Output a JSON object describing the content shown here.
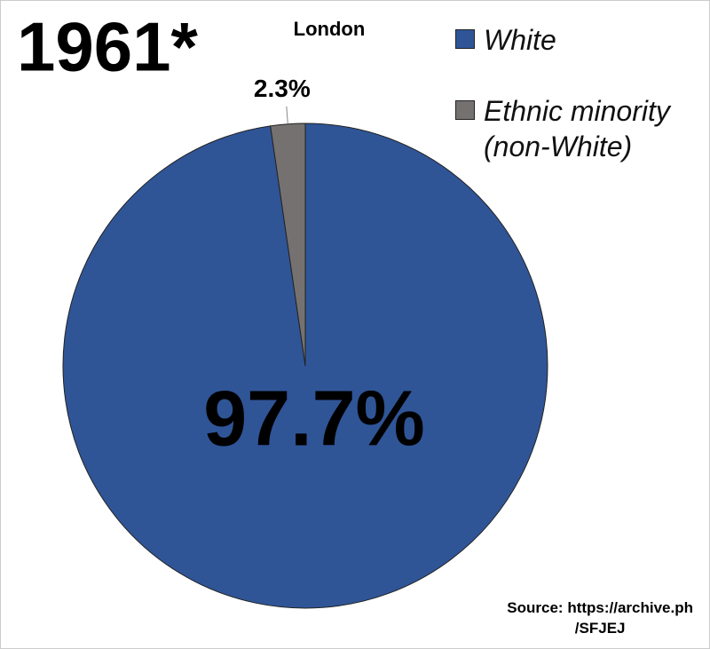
{
  "chart_data": {
    "type": "pie",
    "annotation": "1961*",
    "title": "London",
    "categories": [
      "White",
      "Ethnic minority (non-White)"
    ],
    "values": [
      97.7,
      2.3
    ],
    "value_labels": [
      "97.7%",
      "2.3%"
    ],
    "colors": [
      "#2f5597",
      "#767171"
    ],
    "source": [
      "Source: https://archive.ph",
      "/SFJEJ"
    ]
  }
}
